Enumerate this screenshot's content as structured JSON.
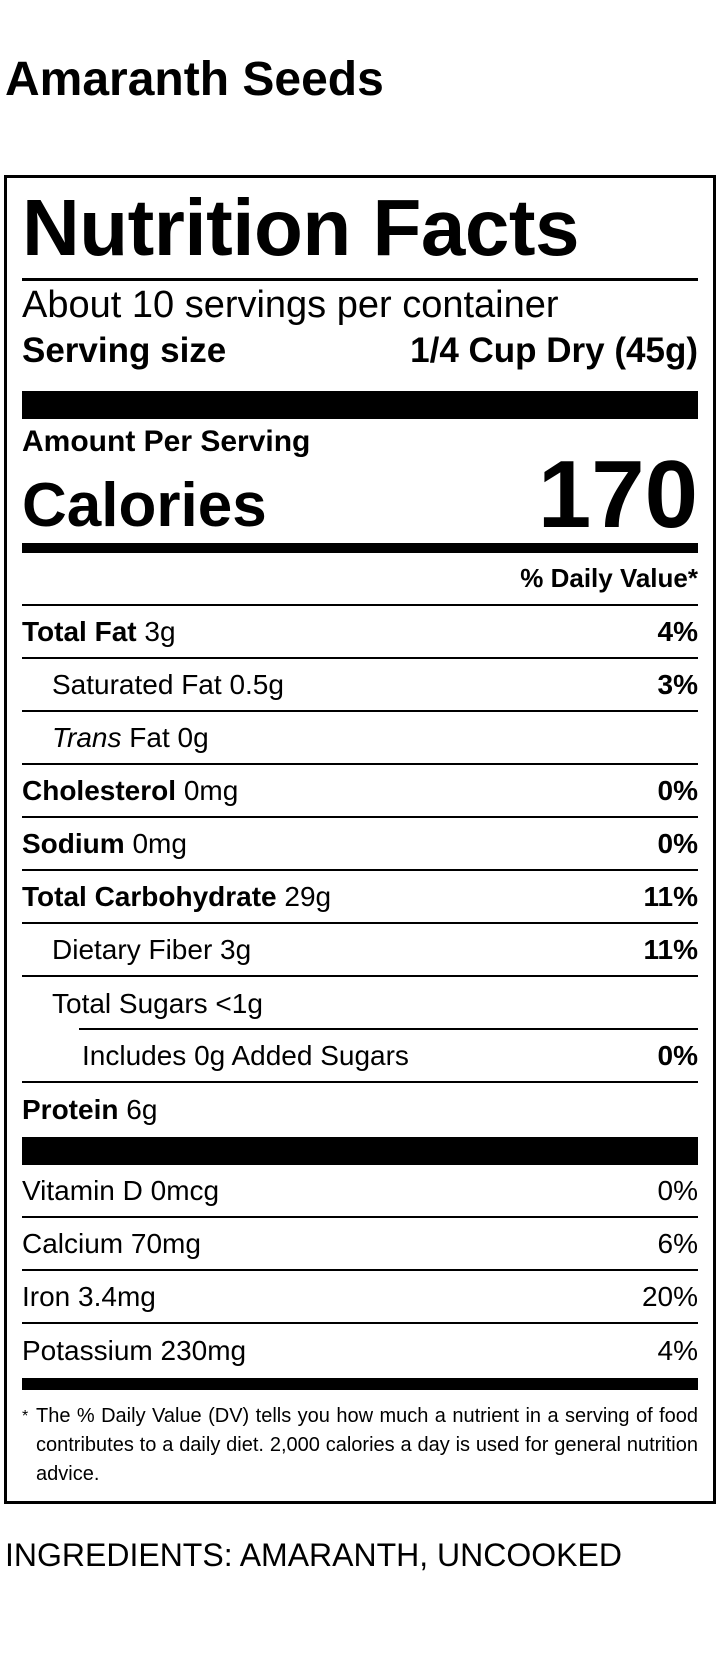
{
  "product_name": "Amaranth Seeds",
  "label": {
    "heading": "Nutrition Facts",
    "servings_per_container": "About 10 servings per container",
    "serving_size_label": "Serving size",
    "serving_size_value": "1/4 Cup Dry (45g)",
    "amount_per_serving": "Amount Per Serving",
    "calories_label": "Calories",
    "calories_value": "170",
    "daily_value_header": "% Daily Value*",
    "nutrients": [
      {
        "name": "Total Fat",
        "amount": "3g",
        "dv": "4%"
      },
      {
        "name": "Saturated Fat",
        "amount": "0.5g",
        "dv": "3%"
      },
      {
        "name_italic": "Trans",
        "name": "Fat",
        "amount": "0g",
        "dv": ""
      },
      {
        "name": "Cholesterol",
        "amount": "0mg",
        "dv": "0%"
      },
      {
        "name": "Sodium",
        "amount": "0mg",
        "dv": "0%"
      },
      {
        "name": "Total Carbohydrate",
        "amount": "29g",
        "dv": "11%"
      },
      {
        "name": "Dietary Fiber",
        "amount": "3g",
        "dv": "11%"
      },
      {
        "name": "Total Sugars",
        "amount": "<1g",
        "dv": ""
      },
      {
        "name": "Includes 0g Added Sugars",
        "amount": "",
        "dv": "0%"
      },
      {
        "name": "Protein",
        "amount": "6g",
        "dv": ""
      }
    ],
    "vitamins": [
      {
        "text": "Vitamin D 0mcg",
        "dv": "0%"
      },
      {
        "text": "Calcium 70mg",
        "dv": "6%"
      },
      {
        "text": "Iron 3.4mg",
        "dv": "20%"
      },
      {
        "text": "Potassium 230mg",
        "dv": "4%"
      }
    ],
    "footnote_marker": "*",
    "footnote": "The % Daily Value (DV) tells you how much a nutrient in a serving of food contributes to a daily diet. 2,000 calories a day is used for general nutrition advice."
  },
  "ingredients": "INGREDIENTS: AMARANTH, UNCOOKED"
}
